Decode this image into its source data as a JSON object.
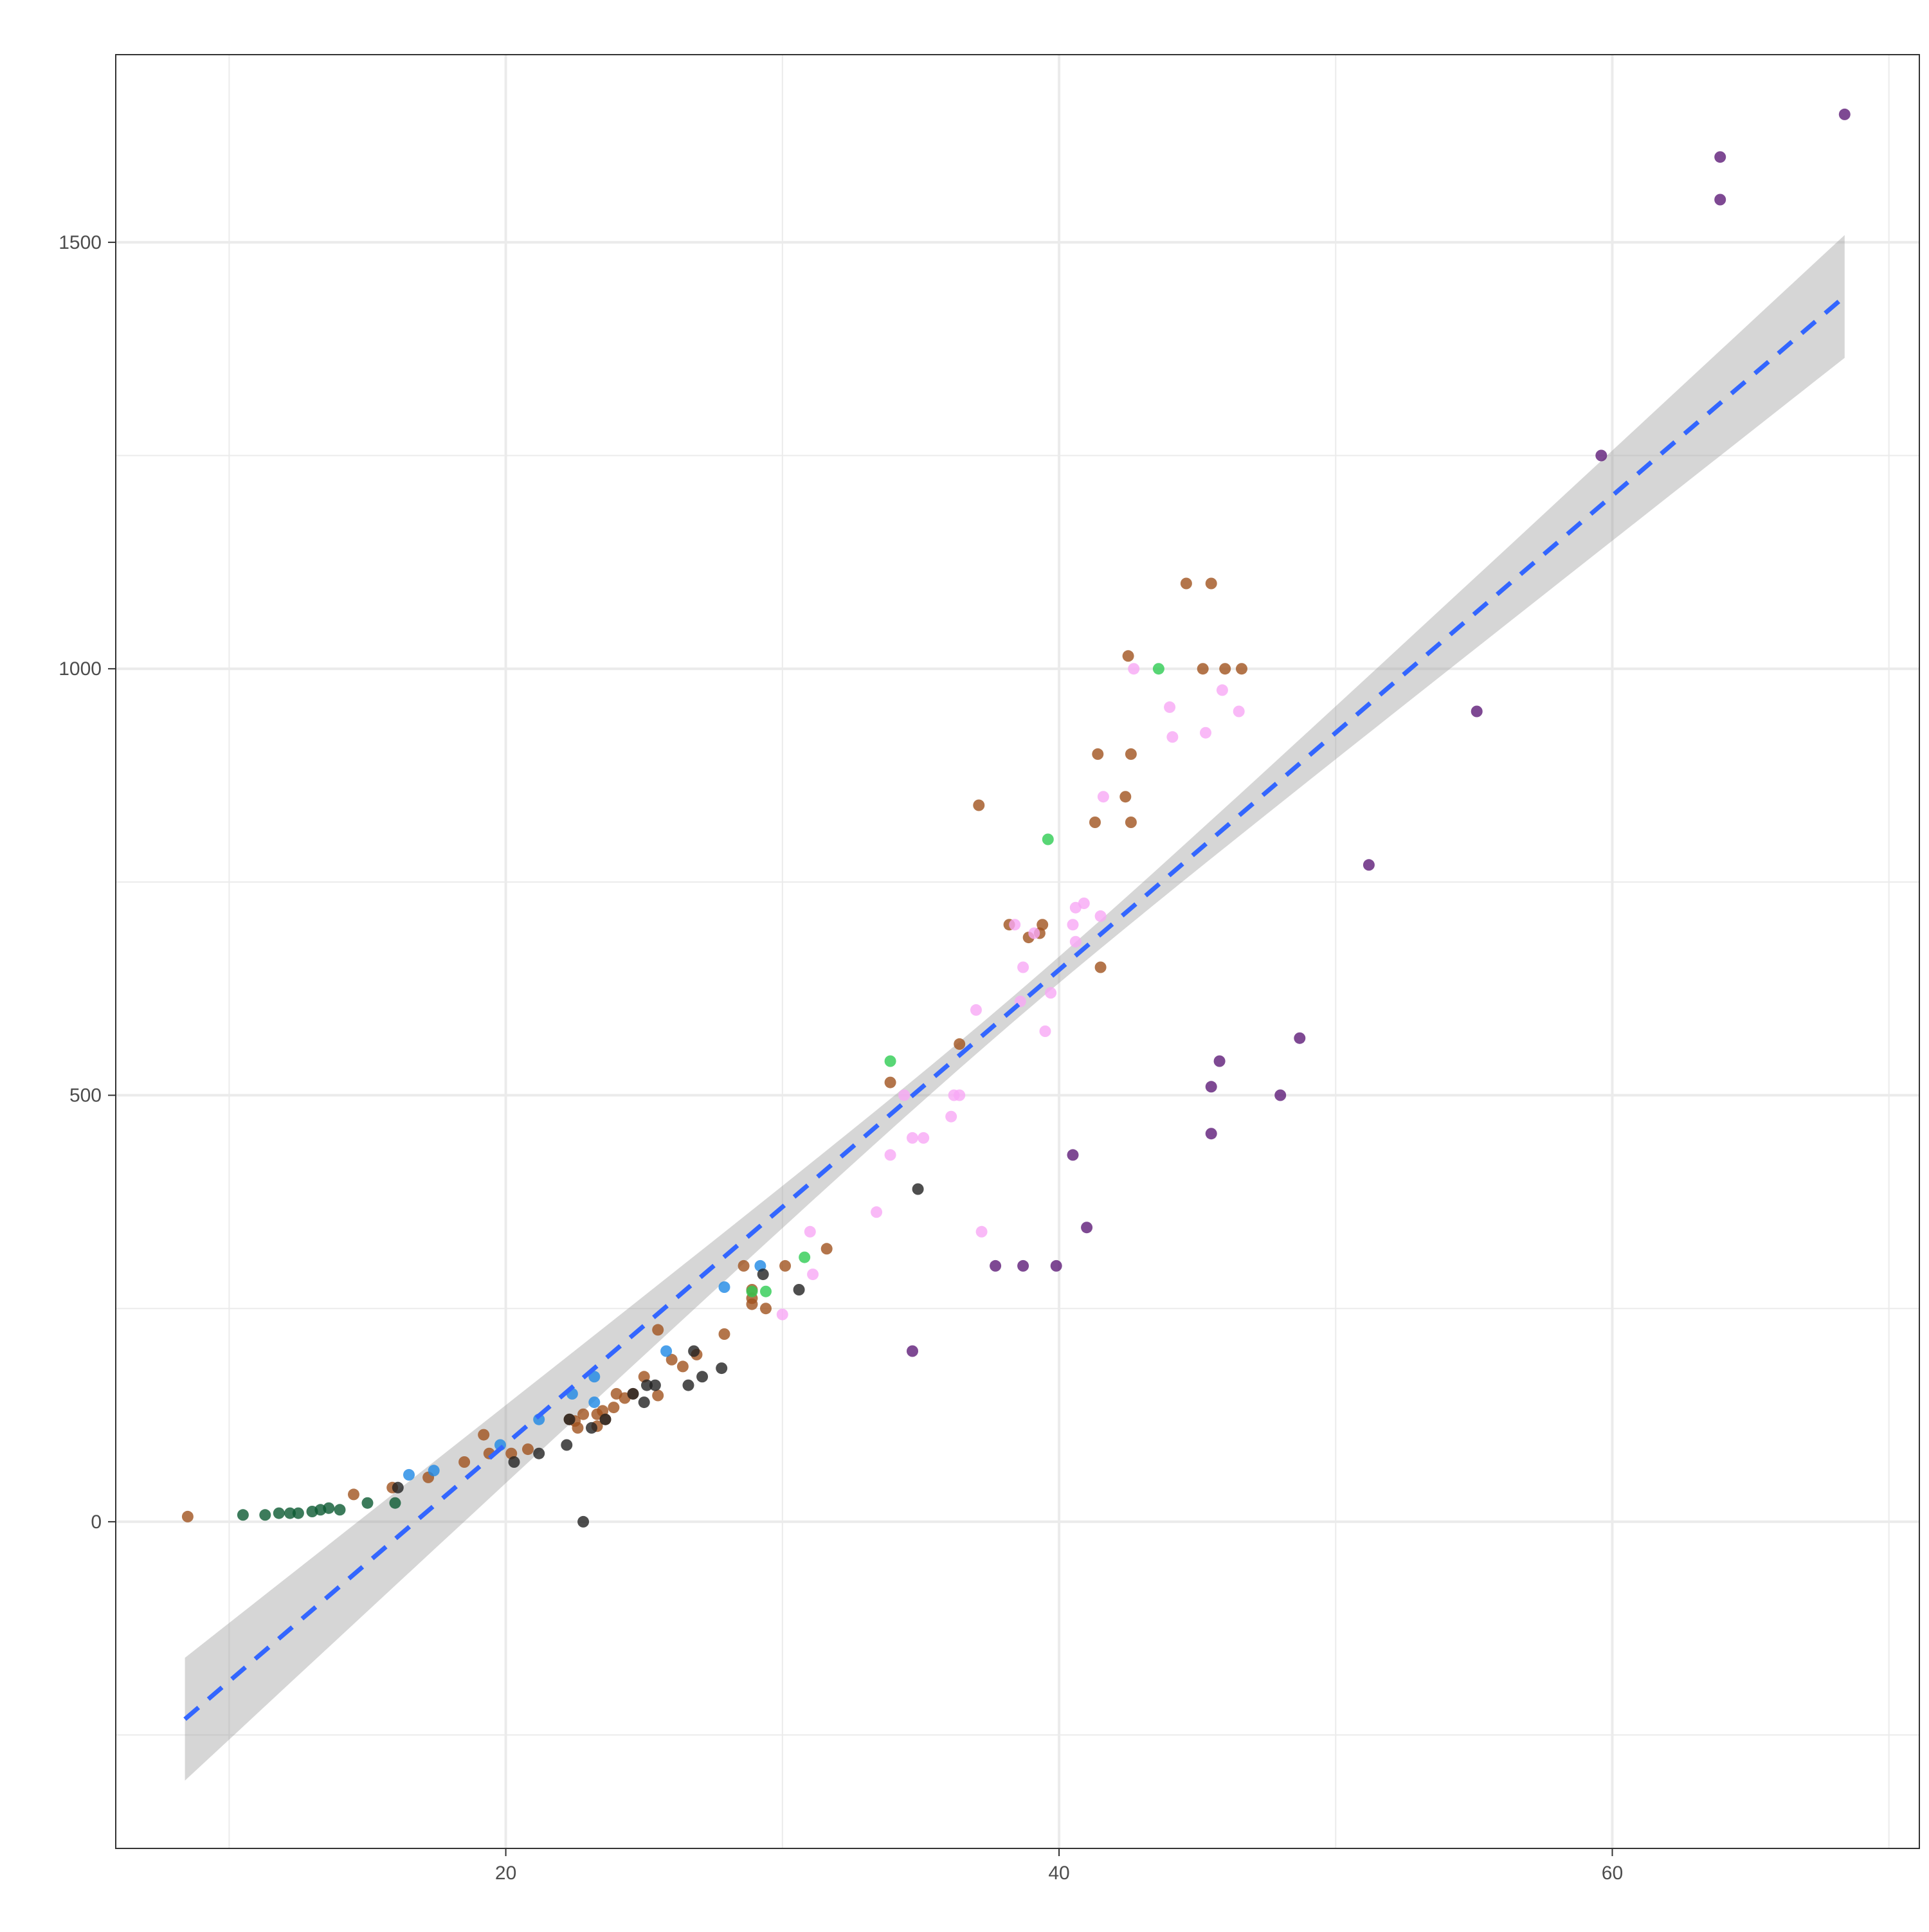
{
  "chart_data": {
    "type": "scatter",
    "title": "",
    "xlabel": "",
    "ylabel": "",
    "xlim": [
      5.9,
      71.1
    ],
    "ylim": [
      -383,
      1720
    ],
    "x_ticks": [
      20,
      40,
      60
    ],
    "x_minor_ticks": [
      10,
      30,
      50,
      70
    ],
    "y_ticks": [
      0,
      500,
      1000,
      1500
    ],
    "y_minor_ticks": [
      -250,
      250,
      750,
      1250
    ],
    "grid": true,
    "legend": "none",
    "colors": {
      "dark_green": "#0B5A32",
      "brown": "#A0521E",
      "blue": "#1E88E5",
      "green": "#2ECC52",
      "black": "#222222",
      "pink": "#F7A8F5",
      "purple": "#5E1B78",
      "fit_line": "#3366FF",
      "ribbon": "#999999",
      "panel_border": "#333333",
      "grid": "#EBEBEB"
    },
    "trend": {
      "type": "lm",
      "x_range": [
        8.4,
        68.4
      ],
      "slope": 27.8,
      "intercept": -465,
      "se_at_mean": 15,
      "se_at_ends": 72,
      "line_style": "dashed"
    },
    "series": [
      {
        "color": "dark_green",
        "points": [
          [
            10.5,
            8
          ],
          [
            11.3,
            8
          ],
          [
            11.8,
            10
          ],
          [
            12.2,
            10
          ],
          [
            12.5,
            10
          ],
          [
            13.0,
            12
          ],
          [
            13.3,
            14
          ],
          [
            13.6,
            16
          ],
          [
            14.0,
            14
          ],
          [
            15.0,
            22
          ],
          [
            16.0,
            22
          ]
        ]
      },
      {
        "color": "brown",
        "points": [
          [
            8.5,
            6
          ],
          [
            14.5,
            32
          ],
          [
            15.9,
            40
          ],
          [
            17.2,
            52
          ],
          [
            18.5,
            70
          ],
          [
            19.2,
            102
          ],
          [
            19.4,
            80
          ],
          [
            20.2,
            80
          ],
          [
            20.8,
            85
          ],
          [
            22.3,
            120
          ],
          [
            22.5,
            118
          ],
          [
            22.6,
            110
          ],
          [
            22.8,
            126
          ],
          [
            23.3,
            112
          ],
          [
            23.3,
            126
          ],
          [
            23.5,
            130
          ],
          [
            23.6,
            120
          ],
          [
            23.9,
            134
          ],
          [
            24.0,
            150
          ],
          [
            24.3,
            145
          ],
          [
            24.6,
            150
          ],
          [
            25.0,
            170
          ],
          [
            25.5,
            148
          ],
          [
            25.5,
            225
          ],
          [
            26.0,
            190
          ],
          [
            26.4,
            182
          ],
          [
            26.9,
            196
          ],
          [
            27.9,
            220
          ],
          [
            28.6,
            300
          ],
          [
            28.9,
            255
          ],
          [
            28.9,
            262
          ],
          [
            28.9,
            272
          ],
          [
            29.4,
            250
          ],
          [
            30.1,
            300
          ],
          [
            31.6,
            320
          ],
          [
            33.9,
            515
          ],
          [
            36.4,
            560
          ],
          [
            37.1,
            840
          ],
          [
            38.2,
            700
          ],
          [
            38.9,
            685
          ],
          [
            39.3,
            690
          ],
          [
            39.4,
            700
          ],
          [
            41.3,
            820
          ],
          [
            41.4,
            900
          ],
          [
            41.5,
            650
          ],
          [
            42.4,
            850
          ],
          [
            42.5,
            1015
          ],
          [
            42.6,
            820
          ],
          [
            42.6,
            900
          ],
          [
            44.6,
            1100
          ],
          [
            45.2,
            1000
          ],
          [
            45.5,
            1100
          ],
          [
            46.0,
            1000
          ],
          [
            46.6,
            1000
          ]
        ]
      },
      {
        "color": "blue",
        "points": [
          [
            16.5,
            55
          ],
          [
            17.4,
            60
          ],
          [
            19.8,
            90
          ],
          [
            21.2,
            120
          ],
          [
            22.4,
            150
          ],
          [
            23.2,
            170
          ],
          [
            23.2,
            140
          ],
          [
            25.8,
            200
          ],
          [
            27.9,
            275
          ],
          [
            29.2,
            300
          ]
        ]
      },
      {
        "color": "green",
        "points": [
          [
            28.9,
            270
          ],
          [
            29.4,
            270
          ],
          [
            30.8,
            310
          ],
          [
            33.9,
            540
          ],
          [
            39.6,
            800
          ],
          [
            43.6,
            1000
          ]
        ]
      },
      {
        "color": "black",
        "points": [
          [
            16.1,
            40
          ],
          [
            20.3,
            70
          ],
          [
            21.2,
            80
          ],
          [
            22.2,
            90
          ],
          [
            22.3,
            120
          ],
          [
            22.8,
            0
          ],
          [
            23.1,
            110
          ],
          [
            23.6,
            120
          ],
          [
            24.6,
            150
          ],
          [
            25.0,
            140
          ],
          [
            25.1,
            160
          ],
          [
            25.4,
            160
          ],
          [
            26.6,
            160
          ],
          [
            26.8,
            200
          ],
          [
            27.1,
            170
          ],
          [
            27.8,
            180
          ],
          [
            29.3,
            290
          ],
          [
            30.6,
            272
          ],
          [
            34.9,
            390
          ]
        ]
      },
      {
        "color": "pink",
        "points": [
          [
            30.0,
            243
          ],
          [
            31.0,
            340
          ],
          [
            31.1,
            290
          ],
          [
            33.4,
            363
          ],
          [
            33.9,
            430
          ],
          [
            34.4,
            500
          ],
          [
            34.7,
            450
          ],
          [
            35.1,
            450
          ],
          [
            36.1,
            475
          ],
          [
            36.2,
            500
          ],
          [
            36.4,
            500
          ],
          [
            37.0,
            600
          ],
          [
            37.2,
            340
          ],
          [
            38.4,
            700
          ],
          [
            38.6,
            610
          ],
          [
            38.7,
            650
          ],
          [
            39.1,
            690
          ],
          [
            39.5,
            575
          ],
          [
            39.7,
            620
          ],
          [
            40.5,
            700
          ],
          [
            40.6,
            720
          ],
          [
            40.6,
            680
          ],
          [
            40.9,
            725
          ],
          [
            41.5,
            710
          ],
          [
            41.6,
            850
          ],
          [
            42.7,
            1000
          ],
          [
            44.0,
            955
          ],
          [
            44.1,
            920
          ],
          [
            45.3,
            925
          ],
          [
            45.9,
            975
          ],
          [
            46.5,
            950
          ]
        ]
      },
      {
        "color": "purple",
        "points": [
          [
            34.7,
            200
          ],
          [
            37.7,
            300
          ],
          [
            38.7,
            300
          ],
          [
            39.9,
            300
          ],
          [
            40.5,
            430
          ],
          [
            41.0,
            345
          ],
          [
            45.5,
            455
          ],
          [
            45.5,
            510
          ],
          [
            45.8,
            540
          ],
          [
            48.0,
            500
          ],
          [
            48.7,
            567
          ],
          [
            51.2,
            770
          ],
          [
            55.1,
            950
          ],
          [
            59.6,
            1250
          ],
          [
            63.9,
            1550
          ],
          [
            63.9,
            1600
          ],
          [
            68.4,
            1650
          ]
        ]
      }
    ]
  }
}
